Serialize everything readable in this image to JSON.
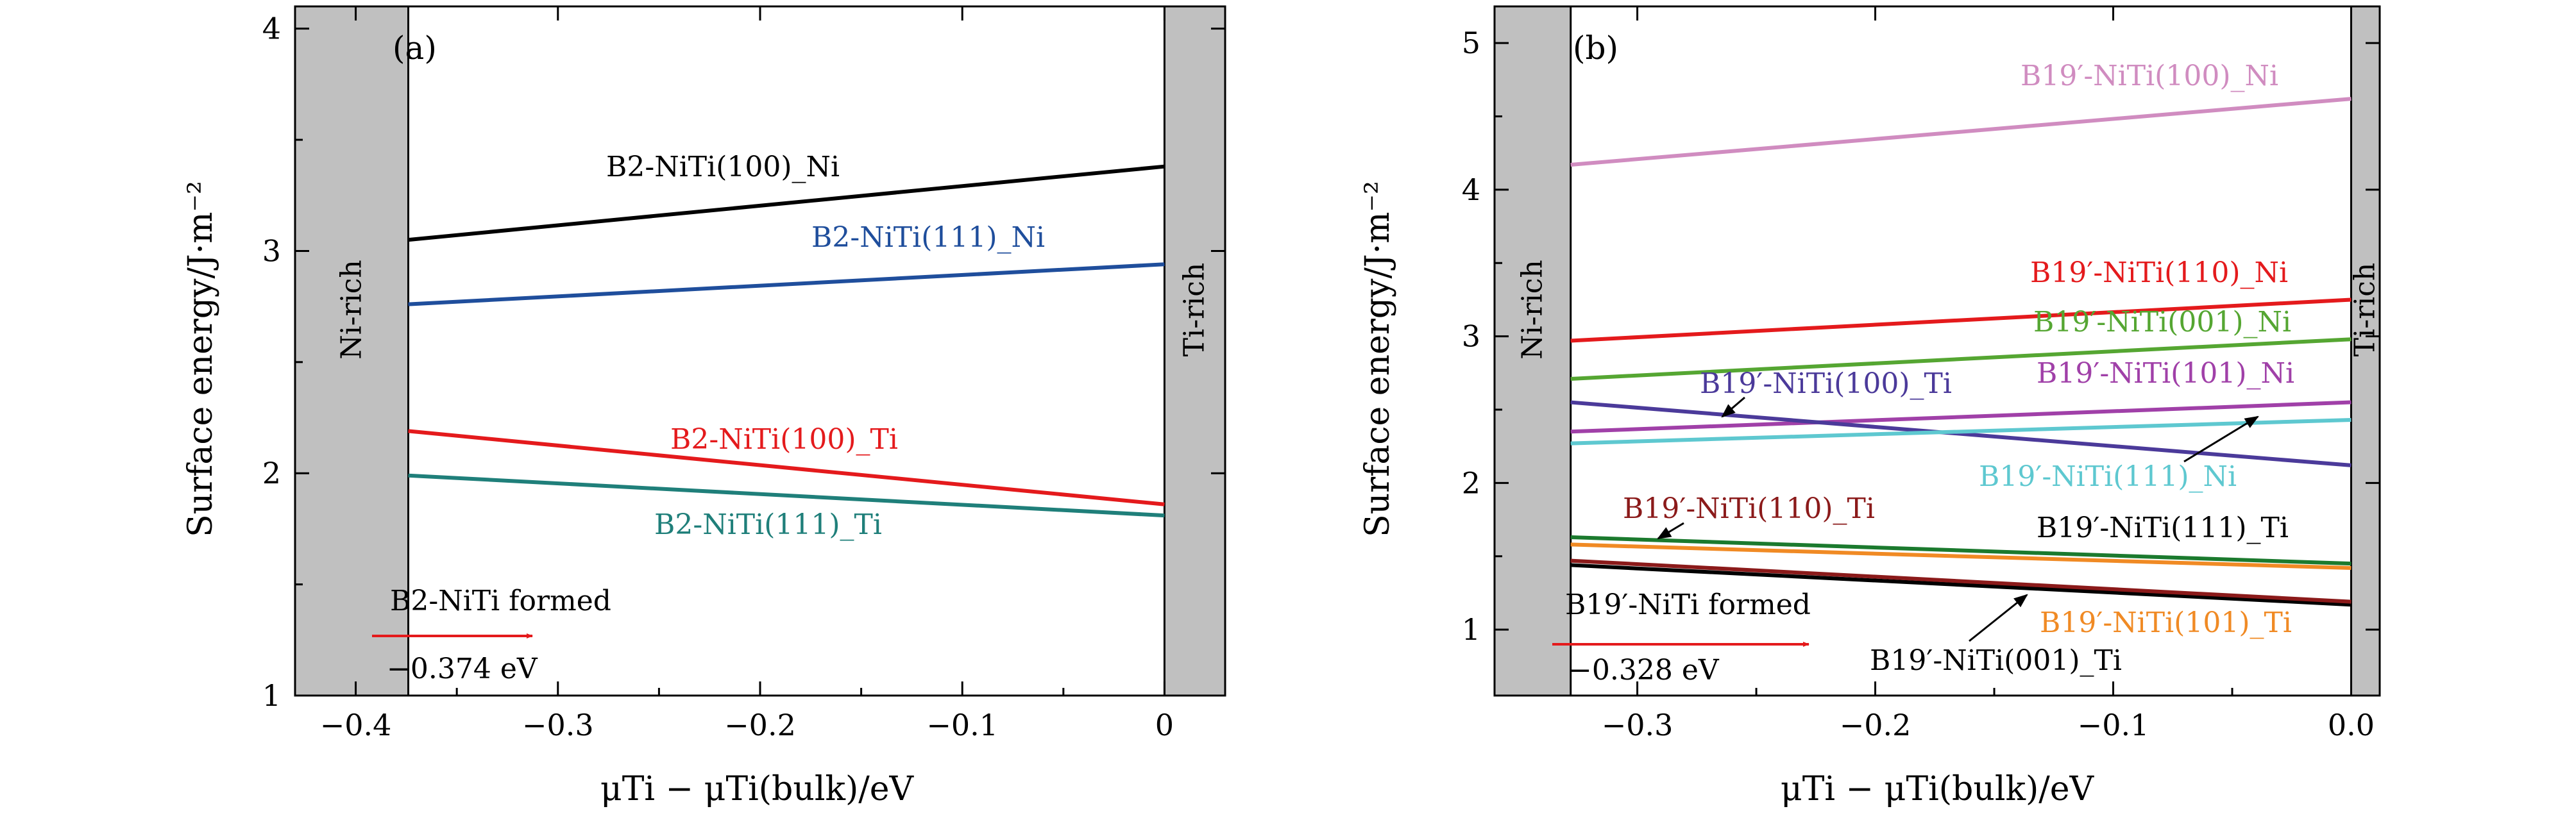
{
  "figure": {
    "shared_xlabel": "μTi − μTi(bulk)/eV"
  },
  "chart_data": [
    {
      "panel": "(a)",
      "type": "line",
      "title": "",
      "xlabel": "μTi − μTi(bulk)/eV",
      "ylabel": "Surface energy/J·m⁻²",
      "xlim": [
        -0.43,
        0.03
      ],
      "ylim": [
        1,
        4.1
      ],
      "xticks": [
        -0.4,
        -0.3,
        -0.2,
        -0.1,
        0
      ],
      "xtick_labels": [
        "−0.4",
        "−0.3",
        "−0.2",
        "−0.1",
        "0"
      ],
      "yticks": [
        1,
        2,
        3,
        4
      ],
      "ytick_labels": [
        "1",
        "2",
        "3",
        "4"
      ],
      "regions": [
        {
          "label": "Ni-rich",
          "x0": -0.43,
          "x1": -0.374
        },
        {
          "label": "Ti-rich",
          "x0": 0,
          "x1": 0.03
        }
      ],
      "series": [
        {
          "name": "B2-NiTi(100)_Ni",
          "color": "#000000",
          "x": [
            -0.374,
            0
          ],
          "y": [
            3.05,
            3.38
          ]
        },
        {
          "name": "B2-NiTi(111)_Ni",
          "color": "#1f4e9c",
          "x": [
            -0.374,
            0
          ],
          "y": [
            2.76,
            2.94
          ]
        },
        {
          "name": "B2-NiTi(100)_Ti",
          "color": "#e41a1c",
          "x": [
            -0.374,
            0
          ],
          "y": [
            2.19,
            1.86
          ]
        },
        {
          "name": "B2-NiTi(111)_Ti",
          "color": "#1f7f7a",
          "x": [
            -0.374,
            0
          ],
          "y": [
            1.99,
            1.81
          ]
        }
      ],
      "annotations": [
        {
          "text": "B2-NiTi formed",
          "color": "#000000"
        },
        {
          "text": "−0.374 eV",
          "color": "#000000"
        }
      ],
      "arrow_color": "#e41a1c"
    },
    {
      "panel": "(b)",
      "type": "line",
      "title": "",
      "xlabel": "μTi − μTi(bulk)/eV",
      "ylabel": "Surface energy/J·m⁻²",
      "xlim": [
        -0.36,
        0.012
      ],
      "ylim": [
        0.55,
        5.25
      ],
      "xticks": [
        -0.3,
        -0.2,
        -0.1,
        0
      ],
      "xtick_labels": [
        "−0.3",
        "−0.2",
        "−0.1",
        "0.0"
      ],
      "yticks": [
        1,
        2,
        3,
        4,
        5
      ],
      "ytick_labels": [
        "1",
        "2",
        "3",
        "4",
        "5"
      ],
      "regions": [
        {
          "label": "Ni-rich",
          "x0": -0.36,
          "x1": -0.328
        },
        {
          "label": "Ti-rich",
          "x0": 0,
          "x1": 0.012
        }
      ],
      "series": [
        {
          "name": "B19′-NiTi(100)_Ni",
          "color": "#d08cc0",
          "x": [
            -0.328,
            0
          ],
          "y": [
            4.17,
            4.62
          ]
        },
        {
          "name": "B19′-NiTi(110)_Ni",
          "color": "#e41a1c",
          "x": [
            -0.328,
            0
          ],
          "y": [
            2.97,
            3.25
          ]
        },
        {
          "name": "B19′-NiTi(001)_Ni",
          "color": "#55a632",
          "x": [
            -0.328,
            0
          ],
          "y": [
            2.71,
            2.98
          ]
        },
        {
          "name": "B19′-NiTi(101)_Ni",
          "color": "#a040a8",
          "x": [
            -0.328,
            0
          ],
          "y": [
            2.35,
            2.55
          ]
        },
        {
          "name": "B19′-NiTi(100)_Ti",
          "color": "#4b3a9a",
          "x": [
            -0.328,
            0
          ],
          "y": [
            2.55,
            2.12
          ]
        },
        {
          "name": "B19′-NiTi(111)_Ni",
          "color": "#5ec8d0",
          "x": [
            -0.328,
            0
          ],
          "y": [
            2.27,
            2.43
          ]
        },
        {
          "name": "B19′-NiTi(110)_Ti",
          "color": "#1b7a2e",
          "x": [
            -0.328,
            0
          ],
          "y": [
            1.63,
            1.45
          ]
        },
        {
          "name": "B19′-NiTi(101)_Ti",
          "color": "#f08a24",
          "x": [
            -0.328,
            0
          ],
          "y": [
            1.58,
            1.42
          ]
        },
        {
          "name": "B19′-NiTi(111)_Ti",
          "color": "#000000",
          "x": [
            -0.328,
            0
          ],
          "y": [
            1.44,
            1.17
          ]
        },
        {
          "name": "B19′-NiTi(001)_Ti",
          "color": "#8b1a1a",
          "x": [
            -0.328,
            0
          ],
          "y": [
            1.47,
            1.19
          ]
        }
      ],
      "annotations": [
        {
          "text": "B19′-NiTi formed",
          "color": "#000000"
        },
        {
          "text": "−0.328 eV",
          "color": "#000000"
        }
      ],
      "arrow_color": "#e41a1c"
    }
  ]
}
